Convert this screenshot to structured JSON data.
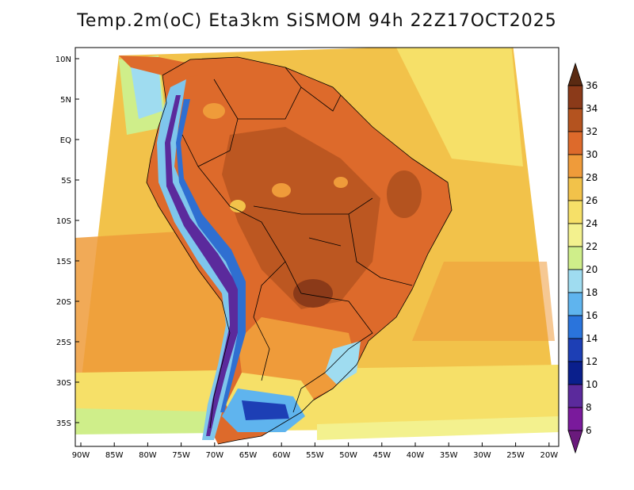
{
  "title": "Temp.2m(oC) Eta3km SiSMOM 94h 22Z17OCT2025",
  "colors": {
    "ocean_warm": "#f2c24a",
    "ocean_orange": "#ef9b3a",
    "ocean_cool": "#f6e068",
    "ocean_pale": "#f3f18e",
    "ocean_green": "#cfee8a",
    "land_hot": "#dd6a2b",
    "land_very_hot": "#b4531f",
    "land_max": "#8b3a19",
    "andes_cold": "#5b2a9c",
    "andes_mid": "#2f6fd1",
    "andes_light": "#7fc6ec",
    "patagonia_blue": "#1d3fb5",
    "border": "#000000"
  },
  "axes": {
    "lat_labels": [
      "10N",
      "5N",
      "EQ",
      "5S",
      "10S",
      "15S",
      "20S",
      "25S",
      "30S",
      "35S"
    ],
    "lon_labels": [
      "90W",
      "85W",
      "80W",
      "75W",
      "70W",
      "65W",
      "60W",
      "55W",
      "50W",
      "45W",
      "40W",
      "35W",
      "30W",
      "25W",
      "20W"
    ]
  },
  "colorbar": {
    "values": [
      36,
      34,
      32,
      30,
      28,
      26,
      24,
      22,
      20,
      18,
      16,
      14,
      12,
      10,
      8,
      6
    ],
    "colors": [
      "#5a2a12",
      "#8b3a19",
      "#b4531f",
      "#dd6a2b",
      "#ef9b3a",
      "#f2c24a",
      "#f6e068",
      "#f3f18e",
      "#cfee8a",
      "#9fdcf0",
      "#5fb4ee",
      "#2a74dc",
      "#1d3fb5",
      "#0a1f8c",
      "#5b2a9c",
      "#7a1a9c",
      "#6a1a7c"
    ]
  }
}
